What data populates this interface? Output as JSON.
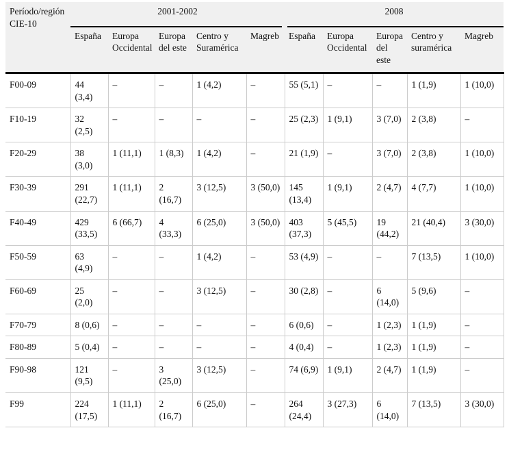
{
  "table": {
    "corner_label": "Período/región CIE-10",
    "groups": [
      {
        "label": "2001-2002",
        "columns": [
          "España",
          "Europa Occidental",
          "Europa del este",
          "Centro y Suramérica",
          "Magreb"
        ]
      },
      {
        "label": "2008",
        "columns": [
          "España",
          "Europa Occidental",
          "Europa del este",
          "Centro y suramérica",
          "Magreb"
        ]
      }
    ],
    "rows": [
      {
        "code": "F00-09",
        "values": [
          "44 (3,4)",
          "–",
          "–",
          "1 (4,2)",
          "–",
          "55 (5,1)",
          "–",
          "–",
          "1 (1,9)",
          "1 (10,0)"
        ]
      },
      {
        "code": "F10-19",
        "values": [
          "32 (2,5)",
          "–",
          "–",
          "–",
          "–",
          "25 (2,3)",
          "1 (9,1)",
          "3 (7,0)",
          "2 (3,8)",
          "–"
        ]
      },
      {
        "code": "F20-29",
        "values": [
          "38 (3,0)",
          "1 (11,1)",
          "1 (8,3)",
          "1 (4,2)",
          "–",
          "21 (1,9)",
          "–",
          "3 (7,0)",
          "2 (3,8)",
          "1 (10,0)"
        ]
      },
      {
        "code": "F30-39",
        "values": [
          "291 (22,7)",
          "1 (11,1)",
          "2 (16,7)",
          "3 (12,5)",
          "3 (50,0)",
          "145 (13,4)",
          "1 (9,1)",
          "2 (4,7)",
          "4 (7,7)",
          "1 (10,0)"
        ]
      },
      {
        "code": "F40-49",
        "values": [
          "429 (33,5)",
          "6 (66,7)",
          "4 (33,3)",
          "6 (25,0)",
          "3 (50,0)",
          "403 (37,3)",
          "5 (45,5)",
          "19 (44,2)",
          "21 (40,4)",
          "3 (30,0)"
        ]
      },
      {
        "code": "F50-59",
        "values": [
          "63 (4,9)",
          "–",
          "–",
          "1 (4,2)",
          "–",
          "53 (4,9)",
          "–",
          "–",
          "7 (13,5)",
          "1 (10,0)"
        ]
      },
      {
        "code": "F60-69",
        "values": [
          "25 (2,0)",
          "–",
          "–",
          "3 (12,5)",
          "–",
          "30 (2,8)",
          "–",
          "6 (14,0)",
          "5 (9,6)",
          "–"
        ]
      },
      {
        "code": "F70-79",
        "values": [
          "8 (0,6)",
          "–",
          "–",
          "–",
          "–",
          "6 (0,6)",
          "–",
          "1 (2,3)",
          "1 (1,9)",
          "–"
        ]
      },
      {
        "code": "F80-89",
        "values": [
          "5 (0,4)",
          "–",
          "–",
          "–",
          "–",
          "4 (0,4)",
          "–",
          "1 (2,3)",
          "1 (1,9)",
          "–"
        ]
      },
      {
        "code": "F90-98",
        "values": [
          "121 (9,5)",
          "–",
          "3 (25,0)",
          "3 (12,5)",
          "–",
          "74 (6,9)",
          "1 (9,1)",
          "2 (4,7)",
          "1 (1,9)",
          "–"
        ]
      },
      {
        "code": "F99",
        "values": [
          "224 (17,5)",
          "1 (11,1)",
          "2 (16,7)",
          "6 (25,0)",
          "–",
          "264 (24,4)",
          "3 (27,3)",
          "6 (14,0)",
          "7 (13,5)",
          "3 (30,0)"
        ]
      }
    ],
    "colors": {
      "header_bg": "#f0f0f0",
      "rule_black": "#000000",
      "grid_gray": "#cccccc"
    }
  }
}
